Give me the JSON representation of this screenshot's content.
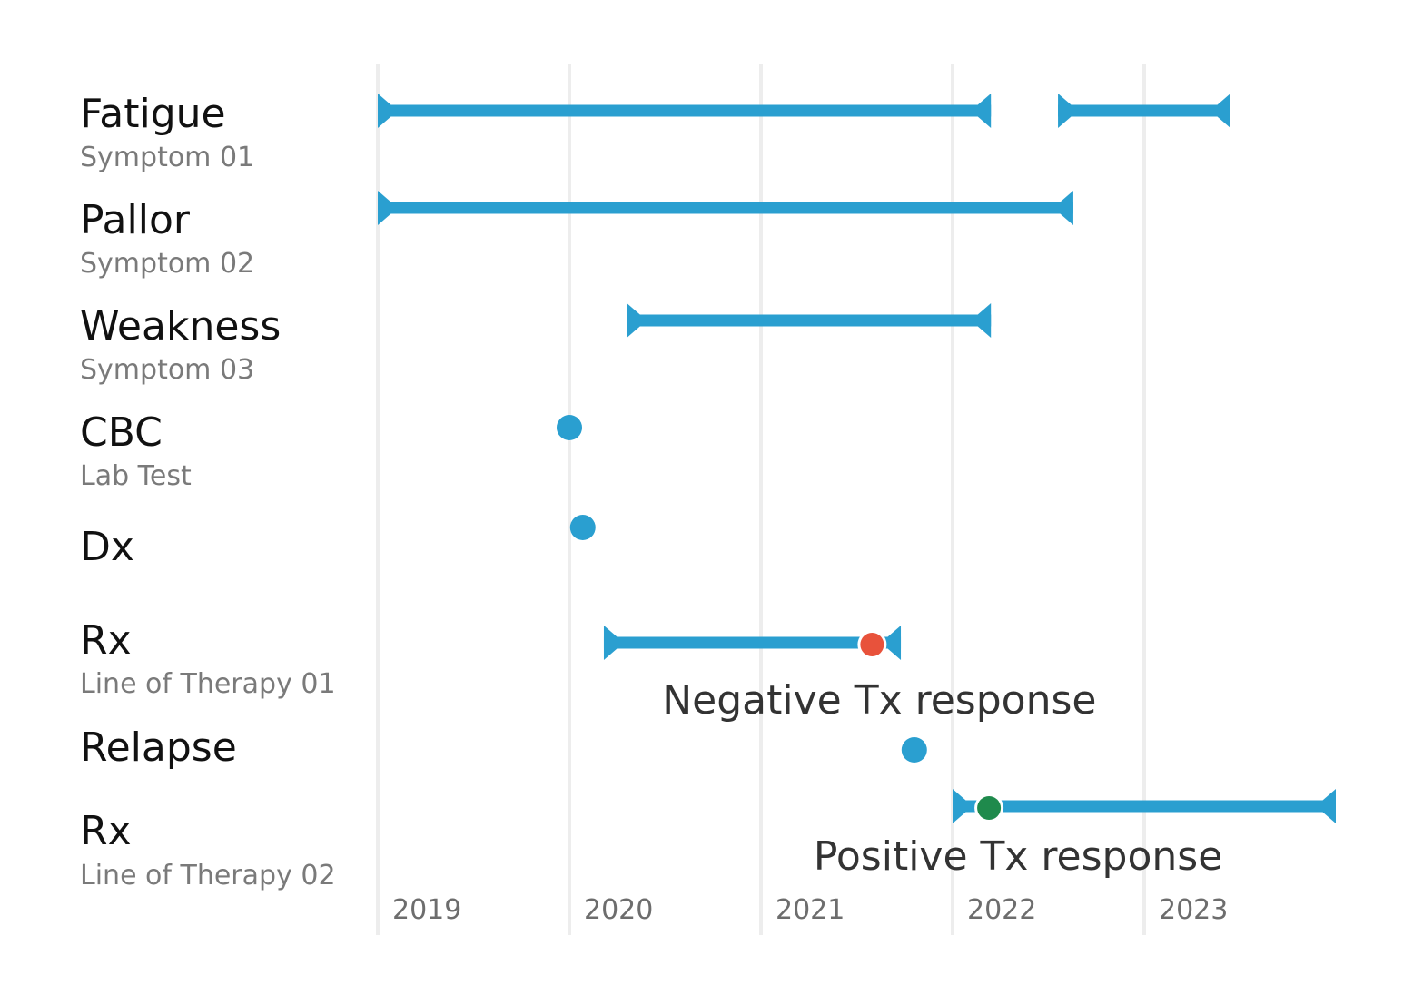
{
  "chart_data": {
    "type": "timeline",
    "x_ticks": [
      "2019",
      "2020",
      "2021",
      "2022",
      "2023"
    ],
    "xlim": [
      2019.0,
      2024.0
    ],
    "grid": true,
    "colors": {
      "bar": "#2a9fd0",
      "point": "#2a9fd0",
      "negative": "#e8523b",
      "positive": "#1f8a4c"
    },
    "rows": [
      {
        "title": "Fatigue",
        "subtitle": "Symptom 01",
        "kind": "range",
        "ranges": [
          [
            2019.0,
            2022.2
          ],
          [
            2022.55,
            2023.45
          ]
        ]
      },
      {
        "title": "Pallor",
        "subtitle": "Symptom 02",
        "kind": "range",
        "ranges": [
          [
            2019.0,
            2022.63
          ]
        ]
      },
      {
        "title": "Weakness",
        "subtitle": "Symptom 03",
        "kind": "range",
        "ranges": [
          [
            2020.3,
            2022.2
          ]
        ]
      },
      {
        "title": "CBC",
        "subtitle": "Lab Test",
        "kind": "point",
        "points": [
          2020.0
        ]
      },
      {
        "title": "Dx",
        "subtitle": "",
        "kind": "point",
        "points": [
          2020.07
        ]
      },
      {
        "title": "Rx",
        "subtitle": "Line of Therapy 01",
        "kind": "range",
        "ranges": [
          [
            2020.18,
            2021.73
          ]
        ]
      },
      {
        "title": "Relapse",
        "subtitle": "",
        "kind": "point",
        "points": [
          2021.8
        ]
      },
      {
        "title": "Rx",
        "subtitle": "Line of Therapy 02",
        "kind": "range",
        "ranges": [
          [
            2022.0,
            2024.0
          ]
        ]
      }
    ],
    "annotations": [
      {
        "row": 5,
        "x": 2021.58,
        "label": "Negative Tx response",
        "status": "negative"
      },
      {
        "row": 7,
        "x": 2022.19,
        "label": "Positive Tx response",
        "status": "positive"
      }
    ]
  }
}
